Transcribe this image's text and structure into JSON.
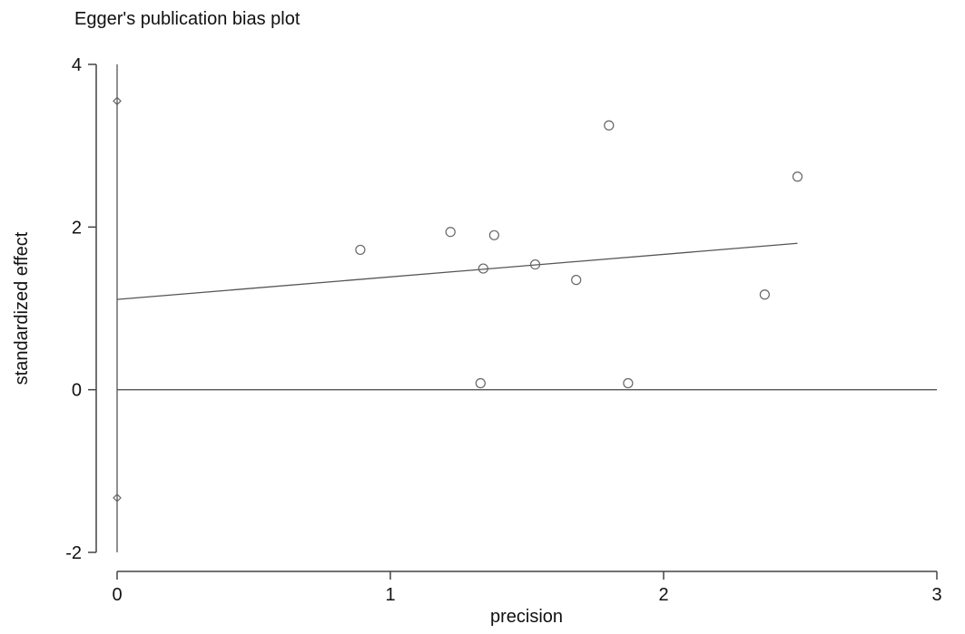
{
  "chart_data": {
    "type": "scatter",
    "title": "Egger's publication bias plot",
    "xlabel": "precision",
    "ylabel": "standardized effect",
    "xlim": [
      0,
      3
    ],
    "ylim": [
      -2,
      4
    ],
    "xticks": [
      0,
      1,
      2,
      3
    ],
    "yticks": [
      -2,
      0,
      2,
      4
    ],
    "grid": false,
    "legend": "none",
    "points": [
      {
        "x": 0.89,
        "y": 1.72
      },
      {
        "x": 1.22,
        "y": 1.94
      },
      {
        "x": 1.38,
        "y": 1.9
      },
      {
        "x": 1.34,
        "y": 1.49
      },
      {
        "x": 1.53,
        "y": 1.54
      },
      {
        "x": 1.68,
        "y": 1.35
      },
      {
        "x": 1.8,
        "y": 3.25
      },
      {
        "x": 2.37,
        "y": 1.17
      },
      {
        "x": 2.49,
        "y": 2.62
      },
      {
        "x": 1.33,
        "y": 0.08
      },
      {
        "x": 1.87,
        "y": 0.08
      }
    ],
    "intercept_ci": {
      "x": 0,
      "low": -2.0,
      "high": 4.0,
      "marker_low": -1.33,
      "marker_high": 3.55
    },
    "regression_line": {
      "x_start": 0,
      "y_start": 1.11,
      "x_end": 2.49,
      "y_end": 1.8
    },
    "reference_line_y": 0,
    "colors": {
      "line": "#555555",
      "marker": "#666666",
      "axis": "#444444"
    }
  }
}
